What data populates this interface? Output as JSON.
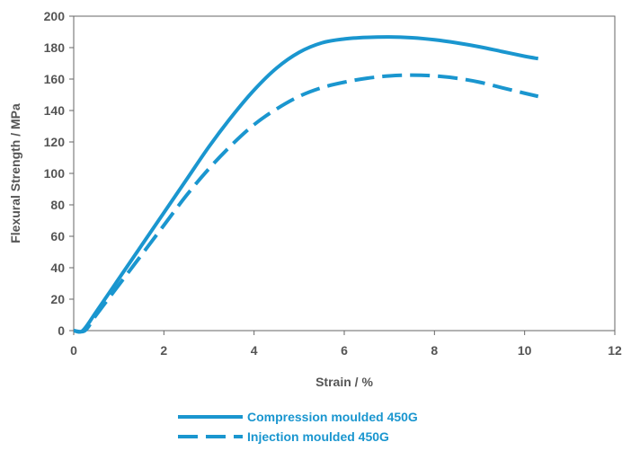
{
  "chart_data": {
    "type": "line",
    "title": "",
    "xlabel": "Strain / %",
    "ylabel": "Flexural Strength / MPa",
    "xlim": [
      0,
      12
    ],
    "ylim": [
      0,
      200
    ],
    "x_ticks": [
      "0",
      "2",
      "4",
      "6",
      "8",
      "10",
      "12"
    ],
    "y_ticks": [
      "0",
      "20",
      "40",
      "60",
      "80",
      "100",
      "120",
      "140",
      "160",
      "180",
      "200"
    ],
    "grid": false,
    "legend_position": "bottom-center",
    "series": [
      {
        "name": "Compression moulded 450G",
        "color": "#1a96cf",
        "line_style": "solid",
        "points": [
          [
            0.0,
            0
          ],
          [
            0.2,
            0
          ],
          [
            0.5,
            12
          ],
          [
            1.0,
            33
          ],
          [
            1.5,
            54
          ],
          [
            2.0,
            75
          ],
          [
            2.5,
            96
          ],
          [
            3.0,
            117
          ],
          [
            3.5,
            136
          ],
          [
            4.0,
            153
          ],
          [
            4.5,
            167
          ],
          [
            5.0,
            177
          ],
          [
            5.5,
            183
          ],
          [
            6.0,
            185.5
          ],
          [
            6.5,
            186.5
          ],
          [
            7.0,
            186.8
          ],
          [
            7.5,
            186.3
          ],
          [
            8.0,
            185
          ],
          [
            8.5,
            183
          ],
          [
            9.0,
            180.5
          ],
          [
            9.5,
            177.5
          ],
          [
            10.0,
            174.5
          ],
          [
            10.3,
            173
          ]
        ]
      },
      {
        "name": "Injection moulded 450G",
        "color": "#1a96cf",
        "line_style": "dashed",
        "points": [
          [
            0.0,
            0
          ],
          [
            0.25,
            0
          ],
          [
            0.5,
            10
          ],
          [
            1.0,
            29
          ],
          [
            1.5,
            48
          ],
          [
            2.0,
            67
          ],
          [
            2.5,
            86
          ],
          [
            3.0,
            103
          ],
          [
            3.5,
            118
          ],
          [
            4.0,
            131
          ],
          [
            4.5,
            141
          ],
          [
            5.0,
            149
          ],
          [
            5.5,
            154.5
          ],
          [
            6.0,
            158
          ],
          [
            6.5,
            160.5
          ],
          [
            7.0,
            162
          ],
          [
            7.5,
            162.5
          ],
          [
            8.0,
            162
          ],
          [
            8.5,
            160.5
          ],
          [
            9.0,
            158
          ],
          [
            9.5,
            154.5
          ],
          [
            10.0,
            151
          ],
          [
            10.3,
            149
          ]
        ]
      }
    ]
  }
}
